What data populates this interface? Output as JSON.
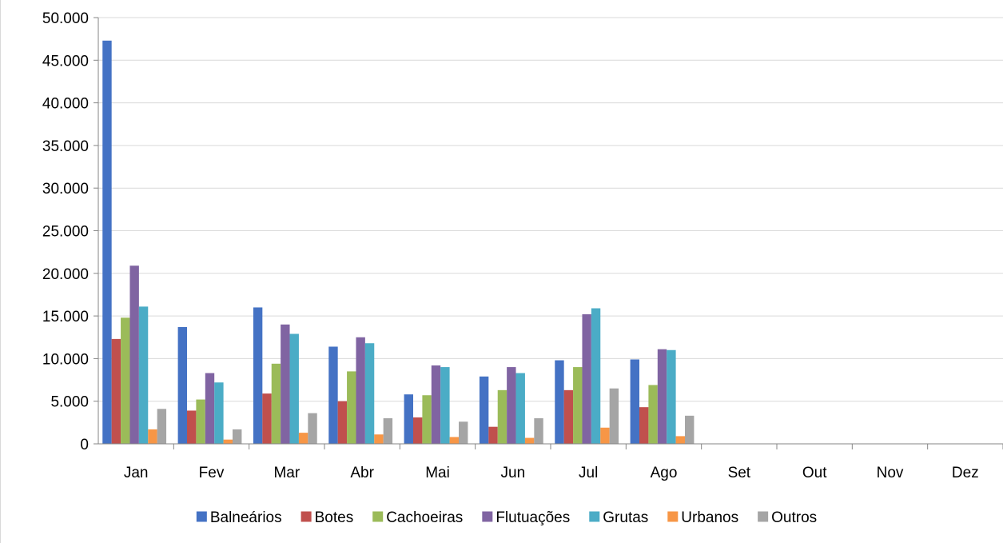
{
  "chart_data": {
    "type": "bar",
    "title": "",
    "xlabel": "",
    "ylabel": "",
    "categories": [
      "Jan",
      "Fev",
      "Mar",
      "Abr",
      "Mai",
      "Jun",
      "Jul",
      "Ago",
      "Set",
      "Out",
      "Nov",
      "Dez"
    ],
    "y_ticks": [
      "0",
      "5.000",
      "10.000",
      "15.000",
      "20.000",
      "25.000",
      "30.000",
      "35.000",
      "40.000",
      "45.000",
      "50.000"
    ],
    "ylim": [
      0,
      50000
    ],
    "grid": true,
    "legend_position": "bottom",
    "series": [
      {
        "name": "Balneários",
        "color": "#4472c4",
        "values": [
          47300,
          13700,
          16000,
          11400,
          5800,
          7900,
          9800,
          9900,
          null,
          null,
          null,
          null
        ]
      },
      {
        "name": "Botes",
        "color": "#c0504d",
        "values": [
          12300,
          3900,
          5900,
          5000,
          3100,
          2000,
          6300,
          4300,
          null,
          null,
          null,
          null
        ]
      },
      {
        "name": "Cachoeiras",
        "color": "#9bbb59",
        "values": [
          14800,
          5200,
          9400,
          8500,
          5700,
          6300,
          9000,
          6900,
          null,
          null,
          null,
          null
        ]
      },
      {
        "name": "Flutuações",
        "color": "#8064a2",
        "values": [
          20900,
          8300,
          14000,
          12500,
          9200,
          9000,
          15200,
          11100,
          null,
          null,
          null,
          null
        ]
      },
      {
        "name": "Grutas",
        "color": "#4bacc6",
        "values": [
          16100,
          7200,
          12900,
          11800,
          9000,
          8300,
          15900,
          11000,
          null,
          null,
          null,
          null
        ]
      },
      {
        "name": "Urbanos",
        "color": "#f79646",
        "values": [
          1700,
          500,
          1300,
          1100,
          800,
          700,
          1900,
          900,
          null,
          null,
          null,
          null
        ]
      },
      {
        "name": "Outros",
        "color": "#a5a5a5",
        "values": [
          4100,
          1700,
          3600,
          3000,
          2600,
          3000,
          6500,
          3300,
          null,
          null,
          null,
          null
        ]
      }
    ]
  }
}
